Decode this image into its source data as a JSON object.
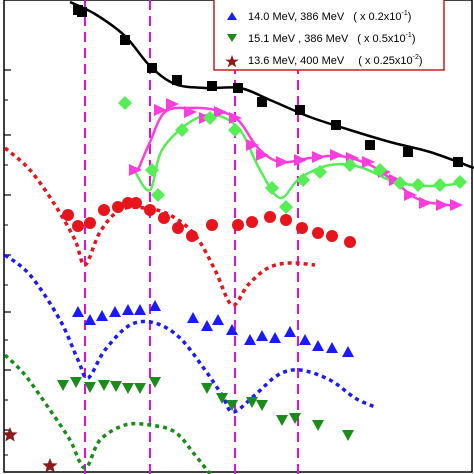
{
  "chart_data": {
    "type": "scatter",
    "legend": {
      "placement": "top-right",
      "entries": [
        {
          "name": "14.0 MeV, 386 MeV",
          "scale": "( x 0.2x10",
          "exponent": "-1",
          "close": ")",
          "color": "#1a1aff",
          "marker": "triangle-up"
        },
        {
          "name": "15.1 MeV , 386 MeV",
          "scale": "( x 0.5x10",
          "exponent": "-1",
          "close": ")",
          "color": "#1a8c1a",
          "marker": "triangle-down"
        },
        {
          "name": "13.6 MeV, 400 MeV",
          "scale": "( x 0.25x10",
          "exponent": "-2",
          "close": ")",
          "color": "#8b1a1a",
          "marker": "star"
        }
      ]
    },
    "minima_lines": [
      85,
      150,
      235,
      298
    ],
    "series": [
      {
        "color": "#000000",
        "marker": "square",
        "points": [
          [
            78,
            10
          ],
          [
            82,
            12
          ],
          [
            125,
            40
          ],
          [
            152,
            68
          ],
          [
            177,
            80
          ],
          [
            212,
            86
          ],
          [
            238,
            88
          ],
          [
            262,
            102
          ],
          [
            300,
            110
          ],
          [
            336,
            125
          ],
          [
            370,
            145
          ],
          [
            408,
            152
          ],
          [
            458,
            162
          ]
        ],
        "curve": [
          [
            70,
            2
          ],
          [
            95,
            14
          ],
          [
            125,
            36
          ],
          [
            150,
            66
          ],
          [
            175,
            84
          ],
          [
            205,
            88
          ],
          [
            240,
            88
          ],
          [
            270,
            100
          ],
          [
            310,
            117
          ],
          [
            350,
            130
          ],
          [
            390,
            142
          ],
          [
            430,
            152
          ],
          [
            474,
            168
          ]
        ]
      },
      {
        "color": "#ff3ddc",
        "marker": "triangle-right",
        "points": [
          [
            135,
            170
          ],
          [
            160,
            110
          ],
          [
            172,
            104
          ],
          [
            190,
            112
          ],
          [
            205,
            118
          ],
          [
            220,
            112
          ],
          [
            235,
            118
          ],
          [
            252,
            145
          ],
          [
            262,
            155
          ],
          [
            282,
            162
          ],
          [
            300,
            160
          ],
          [
            318,
            157
          ],
          [
            336,
            155
          ],
          [
            352,
            158
          ],
          [
            368,
            162
          ],
          [
            384,
            172
          ],
          [
            395,
            180
          ],
          [
            410,
            195
          ],
          [
            425,
            203
          ],
          [
            442,
            205
          ],
          [
            456,
            205
          ]
        ],
        "curve": [
          [
            138,
            170
          ],
          [
            150,
            142
          ],
          [
            165,
            112
          ],
          [
            190,
            108
          ],
          [
            215,
            110
          ],
          [
            238,
            120
          ],
          [
            258,
            148
          ],
          [
            280,
            162
          ],
          [
            310,
            158
          ],
          [
            340,
            156
          ],
          [
            370,
            165
          ],
          [
            395,
            182
          ],
          [
            420,
            200
          ],
          [
            456,
            206
          ]
        ]
      },
      {
        "color": "#55ee55",
        "marker": "diamond",
        "points": [
          [
            125,
            103
          ],
          [
            152,
            170
          ],
          [
            158,
            195
          ],
          [
            182,
            130
          ],
          [
            210,
            118
          ],
          [
            235,
            130
          ],
          [
            272,
            188
          ],
          [
            286,
            207
          ],
          [
            303,
            180
          ],
          [
            320,
            172
          ],
          [
            350,
            165
          ],
          [
            380,
            170
          ],
          [
            400,
            183
          ],
          [
            418,
            185
          ],
          [
            440,
            185
          ],
          [
            460,
            182
          ]
        ],
        "curve": [
          [
            135,
            172
          ],
          [
            150,
            190
          ],
          [
            162,
            150
          ],
          [
            190,
            122
          ],
          [
            215,
            115
          ],
          [
            240,
            130
          ],
          [
            260,
            170
          ],
          [
            280,
            198
          ],
          [
            300,
            178
          ],
          [
            330,
            165
          ],
          [
            360,
            167
          ],
          [
            395,
            182
          ],
          [
            430,
            186
          ],
          [
            456,
            184
          ]
        ]
      },
      {
        "color": "#e8141c",
        "marker": "circle",
        "points": [
          [
            68,
            215
          ],
          [
            78,
            226
          ],
          [
            90,
            223
          ],
          [
            104,
            210
          ],
          [
            118,
            207
          ],
          [
            128,
            203
          ],
          [
            136,
            203
          ],
          [
            150,
            210
          ],
          [
            164,
            218
          ],
          [
            178,
            228
          ],
          [
            192,
            236
          ],
          [
            212,
            225
          ],
          [
            238,
            225
          ],
          [
            252,
            222
          ],
          [
            270,
            217
          ],
          [
            286,
            220
          ],
          [
            302,
            228
          ],
          [
            318,
            233
          ],
          [
            332,
            236
          ],
          [
            350,
            242
          ]
        ]
      },
      {
        "color": "#e8141c",
        "marker": "none",
        "curve": [
          [
            5,
            148
          ],
          [
            30,
            170
          ],
          [
            55,
            205
          ],
          [
            75,
            240
          ],
          [
            85,
            265
          ],
          [
            100,
            232
          ],
          [
            120,
            210
          ],
          [
            145,
            208
          ],
          [
            170,
            215
          ],
          [
            195,
            235
          ],
          [
            215,
            270
          ],
          [
            232,
            305
          ],
          [
            248,
            285
          ],
          [
            268,
            268
          ],
          [
            290,
            263
          ],
          [
            315,
            265
          ]
        ]
      },
      {
        "color": "#1a1aff",
        "marker": "triangle-up",
        "points": [
          [
            78,
            312
          ],
          [
            90,
            320
          ],
          [
            102,
            316
          ],
          [
            115,
            312
          ],
          [
            128,
            310
          ],
          [
            140,
            310
          ],
          [
            155,
            306
          ],
          [
            193,
            318
          ],
          [
            207,
            326
          ],
          [
            218,
            320
          ],
          [
            232,
            330
          ],
          [
            250,
            340
          ],
          [
            262,
            336
          ],
          [
            275,
            338
          ],
          [
            290,
            332
          ],
          [
            305,
            340
          ],
          [
            318,
            346
          ],
          [
            332,
            348
          ],
          [
            348,
            352
          ]
        ]
      },
      {
        "color": "#1a1aff",
        "marker": "none",
        "curve": [
          [
            5,
            255
          ],
          [
            30,
            275
          ],
          [
            60,
            320
          ],
          [
            78,
            360
          ],
          [
            88,
            378
          ],
          [
            105,
            350
          ],
          [
            130,
            325
          ],
          [
            155,
            323
          ],
          [
            180,
            338
          ],
          [
            205,
            370
          ],
          [
            222,
            395
          ],
          [
            233,
            412
          ],
          [
            255,
            395
          ],
          [
            278,
            375
          ],
          [
            300,
            370
          ],
          [
            330,
            380
          ],
          [
            355,
            398
          ],
          [
            375,
            407
          ]
        ]
      },
      {
        "color": "#1a8c1a",
        "marker": "triangle-down",
        "points": [
          [
            63,
            385
          ],
          [
            76,
            382
          ],
          [
            90,
            387
          ],
          [
            104,
            385
          ],
          [
            116,
            386
          ],
          [
            128,
            388
          ],
          [
            140,
            388
          ],
          [
            155,
            382
          ],
          [
            207,
            388
          ],
          [
            222,
            398
          ],
          [
            232,
            405
          ],
          [
            252,
            402
          ],
          [
            262,
            405
          ],
          [
            282,
            420
          ],
          [
            295,
            418
          ],
          [
            318,
            425
          ],
          [
            348,
            435
          ]
        ]
      },
      {
        "color": "#1a8c1a",
        "marker": "none",
        "curve": [
          [
            5,
            355
          ],
          [
            25,
            375
          ],
          [
            50,
            410
          ],
          [
            70,
            440
          ],
          [
            85,
            468
          ],
          [
            100,
            440
          ],
          [
            125,
            425
          ],
          [
            150,
            425
          ],
          [
            175,
            432
          ],
          [
            195,
            455
          ],
          [
            210,
            474
          ]
        ]
      },
      {
        "color": "#8b1a1a",
        "marker": "star",
        "points": [
          [
            10,
            435
          ],
          [
            50,
            466
          ]
        ]
      }
    ]
  }
}
